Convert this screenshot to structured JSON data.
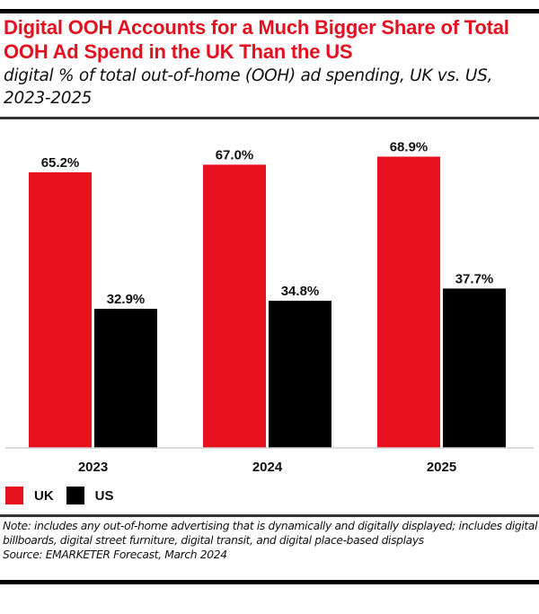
{
  "header": {
    "title": "Digital OOH Accounts for a Much Bigger Share of Total OOH Ad Spend in the UK Than the US",
    "subtitle": "digital % of total out-of-home (OOH) ad spending, UK vs. US, 2023-2025"
  },
  "colors": {
    "uk": "#e8111e",
    "us": "#000000",
    "title": "#e3101f",
    "axis": "#cfcfcf"
  },
  "legend": {
    "items": [
      {
        "label": "UK",
        "color": "#e8111e"
      },
      {
        "label": "US",
        "color": "#000000"
      }
    ]
  },
  "footer": {
    "note": "Note: includes any out-of-home advertising that is dynamically and digitally displayed; includes digital billboards, digital street furniture, digital transit, and digital place-based displays",
    "source": "Source: EMARKETER Forecast, March 2024"
  },
  "chart_data": {
    "type": "bar",
    "title": "Digital OOH Accounts for a Much Bigger Share of Total OOH Ad Spend in the UK Than the US",
    "subtitle": "digital % of total out-of-home (OOH) ad spending, UK vs. US, 2023-2025",
    "categories": [
      "2023",
      "2024",
      "2025"
    ],
    "series": [
      {
        "name": "UK",
        "values": [
          65.2,
          67.0,
          68.9
        ],
        "labels": [
          "65.2%",
          "67.0%",
          "68.9%"
        ],
        "color": "#e8111e"
      },
      {
        "name": "US",
        "values": [
          32.9,
          34.8,
          37.7
        ],
        "labels": [
          "32.9%",
          "34.8%",
          "37.7%"
        ],
        "color": "#000000"
      }
    ],
    "xlabel": "",
    "ylabel": "",
    "ylim": [
      0,
      75
    ],
    "grid": false,
    "legend_position": "bottom-left",
    "unit": "%"
  }
}
